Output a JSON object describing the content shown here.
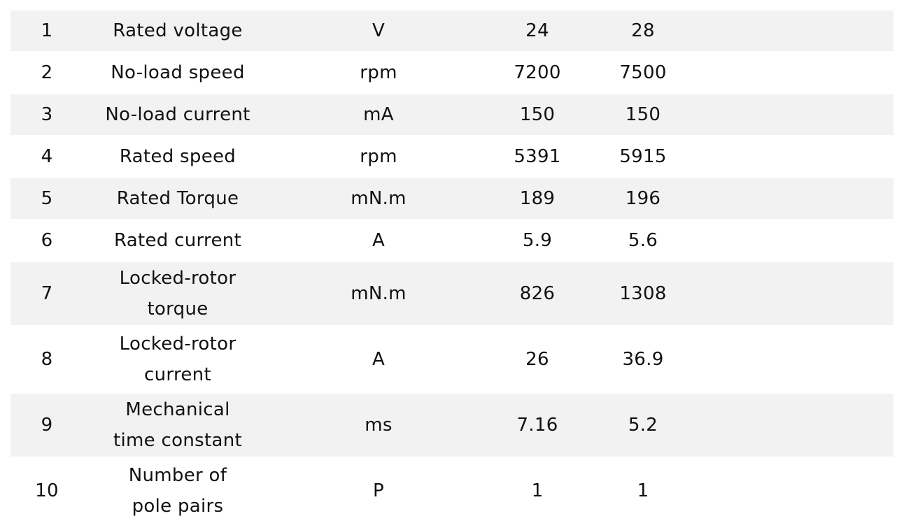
{
  "table": {
    "rows": [
      {
        "no": "1",
        "parameter": "Rated voltage",
        "unit": "V",
        "value_a": "24",
        "value_b": "28"
      },
      {
        "no": "2",
        "parameter": "No-load speed",
        "unit": "rpm",
        "value_a": "7200",
        "value_b": "7500"
      },
      {
        "no": "3",
        "parameter": "No-load current",
        "unit": "mA",
        "value_a": "150",
        "value_b": "150"
      },
      {
        "no": "4",
        "parameter": "Rated speed",
        "unit": "rpm",
        "value_a": "5391",
        "value_b": "5915"
      },
      {
        "no": "5",
        "parameter": "Rated Torque",
        "unit": "mN.m",
        "value_a": "189",
        "value_b": "196"
      },
      {
        "no": "6",
        "parameter": "Rated current",
        "unit": "A",
        "value_a": "5.9",
        "value_b": "5.6"
      },
      {
        "no": "7",
        "parameter": "Locked-rotor torque",
        "unit": "mN.m",
        "value_a": "826",
        "value_b": "1308"
      },
      {
        "no": "8",
        "parameter": "Locked-rotor current",
        "unit": "A",
        "value_a": "26",
        "value_b": "36.9"
      },
      {
        "no": "9",
        "parameter": "Mechanical time constant",
        "unit": "ms",
        "value_a": "7.16",
        "value_b": "5.2"
      },
      {
        "no": "10",
        "parameter": "Number of pole pairs",
        "unit": "P",
        "value_a": "1",
        "value_b": "1"
      }
    ]
  },
  "colors": {
    "stripe": "#f2f2f2",
    "background": "#ffffff",
    "text": "#111111"
  }
}
